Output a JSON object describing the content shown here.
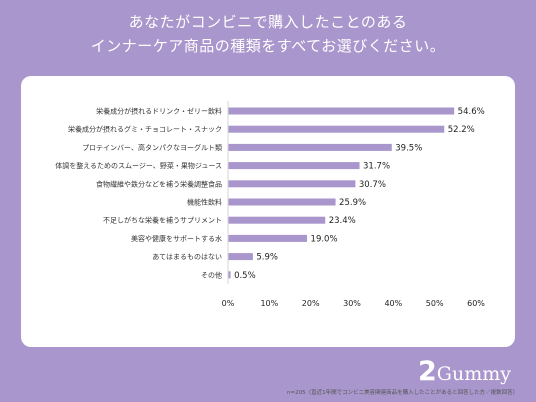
{
  "header": {
    "title_line1": "あなたがコンビニで購入したことのある",
    "title_line2": "インナーケア商品の種類をすべてお選びください。"
  },
  "footnote": "n=205（直近1年間でコンビニ美容関連商品を購入したことがあると回答した方／複数回答）",
  "brand": {
    "num": "2",
    "word": "Gummy"
  },
  "colors": {
    "background": "#a996cc",
    "bar": "#a996cc",
    "card": "#ffffff"
  },
  "chart_data": {
    "type": "bar",
    "orientation": "horizontal",
    "categories": [
      "栄養成分が摂れるドリンク・ゼリー飲料",
      "栄養成分が摂れるグミ・チョコレート・スナック",
      "プロテインバー、高タンパクなヨーグルト類",
      "体調を整えるためのスムージー、野菜・果物ジュース",
      "食物繊維や鉄分などを補う栄養調整食品",
      "機能性飲料",
      "不足しがちな栄養を補うサプリメント",
      "美容や健康をサポートする水",
      "あてはまるものはない",
      "その他"
    ],
    "values": [
      54.6,
      52.2,
      39.5,
      31.7,
      30.7,
      25.9,
      23.4,
      19.0,
      5.9,
      0.5
    ],
    "value_labels": [
      "54.6%",
      "52.2%",
      "39.5%",
      "31.7%",
      "30.7%",
      "25.9%",
      "23.4%",
      "19.0%",
      "5.9%",
      "0.5%"
    ],
    "xlim": [
      0,
      60
    ],
    "x_ticks": [
      "0%",
      "10%",
      "20%",
      "30%",
      "40%",
      "50%",
      "60%"
    ],
    "grid": false,
    "title": "",
    "xlabel": "",
    "ylabel": ""
  }
}
